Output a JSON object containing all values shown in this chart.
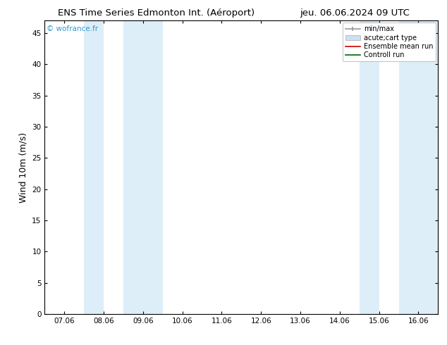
{
  "title_left": "ENS Time Series Edmonton Int. (Aéroport)",
  "title_right": "jeu. 06.06.2024 09 UTC",
  "ylabel": "Wind 10m (m/s)",
  "watermark": "© wofrance.fr",
  "background_color": "#ffffff",
  "plot_bg_color": "#ffffff",
  "ylim": [
    0,
    47
  ],
  "yticks": [
    0,
    5,
    10,
    15,
    20,
    25,
    30,
    35,
    40,
    45
  ],
  "xtick_labels": [
    "07.06",
    "08.06",
    "09.06",
    "10.06",
    "11.06",
    "12.06",
    "13.06",
    "14.06",
    "15.06",
    "16.06"
  ],
  "xtick_positions": [
    0,
    1,
    2,
    3,
    4,
    5,
    6,
    7,
    8,
    9
  ],
  "xlim": [
    -0.5,
    9.5
  ],
  "shaded_bands": [
    {
      "x_start": 0.5,
      "x_end": 1.0,
      "color": "#ddeef8"
    },
    {
      "x_start": 1.5,
      "x_end": 2.5,
      "color": "#ddeef8"
    },
    {
      "x_start": 7.5,
      "x_end": 8.0,
      "color": "#ddeef8"
    },
    {
      "x_start": 8.5,
      "x_end": 9.5,
      "color": "#ddeef8"
    }
  ],
  "title_fontsize": 9.5,
  "axis_fontsize": 9,
  "tick_fontsize": 7.5,
  "watermark_color": "#3399cc",
  "border_color": "#000000",
  "legend_gray": "#999999",
  "legend_blue": "#cce0f0",
  "legend_red": "#cc0000",
  "legend_green": "#006600"
}
